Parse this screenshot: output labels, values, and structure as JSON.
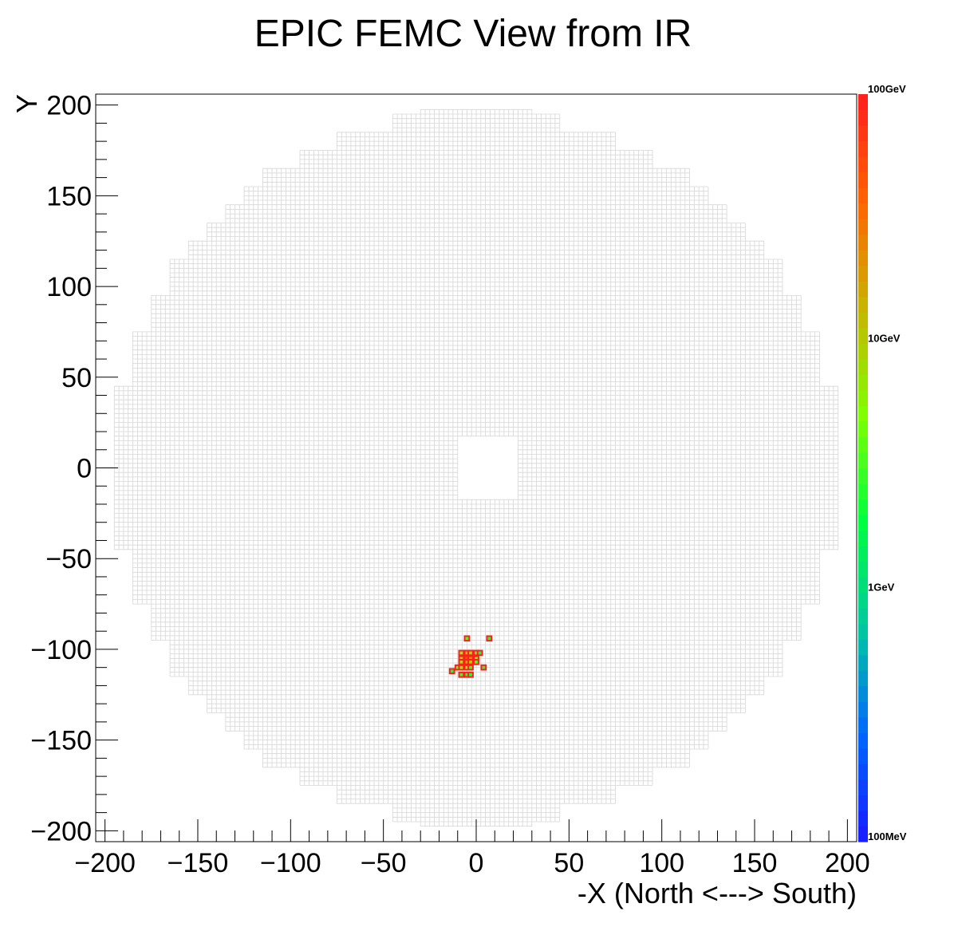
{
  "chart_data": {
    "type": "heatmap",
    "title": "EPIC FEMC View from IR",
    "xlabel": "-X (North <---> South)",
    "ylabel": "Y",
    "xlim": [
      -205,
      205
    ],
    "ylim": [
      -206,
      206
    ],
    "xticks": [
      -200,
      -150,
      -100,
      -50,
      0,
      50,
      100,
      150,
      200
    ],
    "yticks": [
      -200,
      -150,
      -100,
      -50,
      0,
      50,
      100,
      150,
      200
    ],
    "tick_labels_x": [
      "−200",
      "−150",
      "−100",
      "−50",
      "0",
      "50",
      "100",
      "150",
      "200"
    ],
    "tick_labels_y": [
      "−200",
      "−150",
      "−100",
      "−50",
      "0",
      "50",
      "100",
      "150",
      "200"
    ],
    "grid": false,
    "cell_size": 2.5,
    "detector_outline": [
      {
        "x": [
          -195,
          195
        ],
        "y": [
          -45,
          45
        ]
      },
      {
        "x": [
          -185,
          185
        ],
        "y": [
          -75,
          75
        ]
      },
      {
        "x": [
          -175,
          175
        ],
        "y": [
          -95,
          95
        ]
      },
      {
        "x": [
          -165,
          165
        ],
        "y": [
          -115,
          115
        ]
      },
      {
        "x": [
          -155,
          155
        ],
        "y": [
          -125,
          125
        ]
      },
      {
        "x": [
          -145,
          145
        ],
        "y": [
          -135,
          135
        ]
      },
      {
        "x": [
          -135,
          135
        ],
        "y": [
          -145,
          145
        ]
      },
      {
        "x": [
          -125,
          125
        ],
        "y": [
          -155,
          155
        ]
      },
      {
        "x": [
          -115,
          115
        ],
        "y": [
          -165,
          165
        ]
      },
      {
        "x": [
          -95,
          95
        ],
        "y": [
          -175,
          175
        ]
      },
      {
        "x": [
          -75,
          75
        ],
        "y": [
          -185,
          185
        ]
      },
      {
        "x": [
          -45,
          45
        ],
        "y": [
          -195,
          195
        ]
      },
      {
        "x": [
          -30,
          30
        ],
        "y": [
          -198,
          198
        ]
      }
    ],
    "beam_hole": {
      "x": [
        -8,
        20
      ],
      "y": [
        -15,
        15
      ]
    },
    "hits": [
      {
        "x": -5,
        "y": -94,
        "e": 3.2
      },
      {
        "x": 7,
        "y": -94,
        "e": 2.5
      },
      {
        "x": -8,
        "y": -102,
        "e": 5
      },
      {
        "x": -5,
        "y": -102,
        "e": 12
      },
      {
        "x": -3,
        "y": -102,
        "e": 8
      },
      {
        "x": 0,
        "y": -102,
        "e": 4
      },
      {
        "x": 2,
        "y": -102,
        "e": 2.2
      },
      {
        "x": -8,
        "y": -105,
        "e": 9
      },
      {
        "x": -5,
        "y": -105,
        "e": 40
      },
      {
        "x": -3,
        "y": -105,
        "e": 25
      },
      {
        "x": 0,
        "y": -105,
        "e": 6
      },
      {
        "x": -8,
        "y": -107,
        "e": 7
      },
      {
        "x": -5,
        "y": -107,
        "e": 18
      },
      {
        "x": -3,
        "y": -107,
        "e": 10
      },
      {
        "x": 0,
        "y": -107,
        "e": 3.5
      },
      {
        "x": -10,
        "y": -110,
        "e": 4
      },
      {
        "x": -8,
        "y": -110,
        "e": 6
      },
      {
        "x": -5,
        "y": -110,
        "e": 5
      },
      {
        "x": -3,
        "y": -110,
        "e": 3
      },
      {
        "x": 4,
        "y": -110,
        "e": 2.5
      },
      {
        "x": -13,
        "y": -112,
        "e": 2.2
      },
      {
        "x": -8,
        "y": -114,
        "e": 3
      },
      {
        "x": -5,
        "y": -114,
        "e": 2.6
      },
      {
        "x": -3,
        "y": -114,
        "e": 2.3
      }
    ],
    "colorbar": {
      "scale": "log",
      "range": [
        0.1,
        100
      ],
      "labels": [
        "100GeV",
        "10GeV",
        "1GeV",
        "100MeV"
      ],
      "label_values": [
        100,
        10,
        1,
        0.1
      ],
      "colors": [
        "#1a1aff",
        "#0066ff",
        "#00c8a0",
        "#00ff40",
        "#80ff00",
        "#c8b400",
        "#ff6400",
        "#ff1e1e"
      ]
    },
    "colors": {
      "grid_line": "#d6d6d6",
      "hit_outline": "#ff1e1e"
    }
  }
}
